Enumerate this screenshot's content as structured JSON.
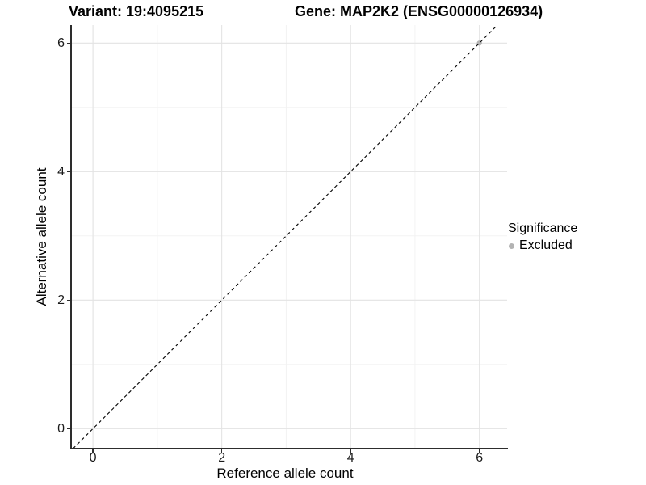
{
  "header": {
    "variant_title": "Variant: 19:4095215",
    "gene_title": "Gene: MAP2K2 (ENSG00000126934)"
  },
  "chart_data": {
    "type": "scatter",
    "xlabel": "Reference allele count",
    "ylabel": "Alternative allele count",
    "x_ticks": [
      0,
      2,
      4,
      6
    ],
    "y_ticks": [
      0,
      2,
      4,
      6
    ],
    "x_minor_ticks": [
      1,
      3,
      5
    ],
    "y_minor_ticks": [
      1,
      3,
      5
    ],
    "xlim": [
      -0.34,
      6.43
    ],
    "ylim": [
      -0.31,
      6.28
    ],
    "grid": "on",
    "series": [
      {
        "name": "Excluded",
        "marker": "circle",
        "color": "#b3b3b3",
        "points": [
          {
            "x": 6,
            "y": 6
          }
        ]
      }
    ],
    "reference_line": {
      "kind": "identity",
      "slope": 1,
      "intercept": 0,
      "style": "dashed",
      "color": "#0a0a0a"
    },
    "legend": {
      "title": "Significance",
      "position": "right",
      "entries": [
        {
          "label": "Excluded",
          "color": "#b3b3b3"
        }
      ]
    }
  },
  "colors": {
    "background": "#ffffff",
    "axis_line": "#2d2d2d",
    "grid_major": "#e3e3e3",
    "grid_minor": "#f1f1f1",
    "point": "#b3b3b3",
    "text": "#000000"
  }
}
